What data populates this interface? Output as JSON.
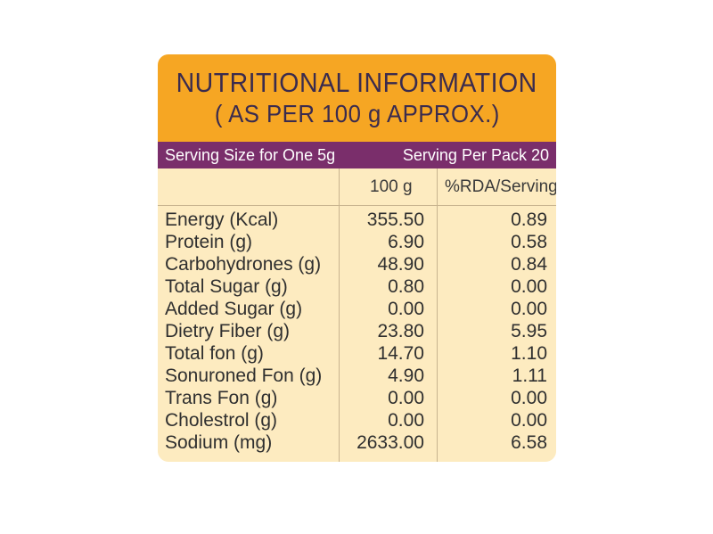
{
  "header": {
    "title": "NUTRITIONAL INFORMATION",
    "subtitle": "( AS PER 100 g APPROX.)"
  },
  "serving": {
    "size_label": "Serving Size for One 5g",
    "per_pack_label": "Serving Per Pack 20"
  },
  "columns": {
    "per100": "100 g",
    "rda": "%RDA/Serving"
  },
  "nutrients": [
    {
      "name": "Energy (Kcal)",
      "per100": "355.50",
      "rda": "0.89"
    },
    {
      "name": "Protein (g)",
      "per100": "6.90",
      "rda": "0.58"
    },
    {
      "name": "Carbohydrones (g)",
      "per100": "48.90",
      "rda": "0.84"
    },
    {
      "name": "Total Sugar (g)",
      "per100": "0.80",
      "rda": "0.00"
    },
    {
      "name": "Added Sugar (g)",
      "per100": "0.00",
      "rda": "0.00"
    },
    {
      "name": "Dietry Fiber (g)",
      "per100": "23.80",
      "rda": "5.95"
    },
    {
      "name": "Total fon (g)",
      "per100": "14.70",
      "rda": "1.10"
    },
    {
      "name": "Sonuroned Fon (g)",
      "per100": "4.90",
      "rda": "1.11"
    },
    {
      "name": "Trans Fon (g)",
      "per100": "0.00",
      "rda": "0.00"
    },
    {
      "name": "Cholestrol (g)",
      "per100": "0.00",
      "rda": "0.00"
    },
    {
      "name": "Sodium (mg)",
      "per100": "2633.00",
      "rda": "6.58"
    }
  ],
  "colors": {
    "header_bg": "#f6a623",
    "serving_bar_bg": "#7a2e6b",
    "table_bg": "#fdebc0",
    "text": "#2f2f2f"
  }
}
